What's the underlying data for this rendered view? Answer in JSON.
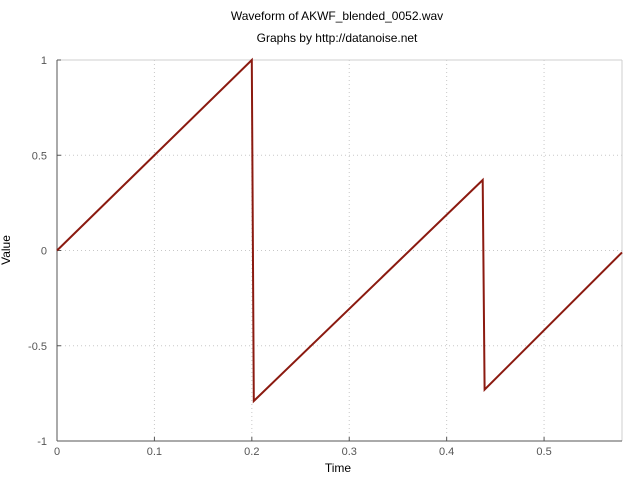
{
  "chart_data": {
    "type": "line",
    "title": "Waveform of AKWF_blended_0052.wav",
    "subtitle": "Graphs by http://datanoise.net",
    "xlabel": "Time",
    "ylabel": "Value",
    "xlim": [
      0,
      0.58
    ],
    "ylim": [
      -1,
      1
    ],
    "x_ticks": [
      0,
      0.1,
      0.2,
      0.3,
      0.4,
      0.5
    ],
    "x_tick_labels": [
      "0",
      "0.1",
      "0.2",
      "0.3",
      "0.4",
      "0.5"
    ],
    "y_ticks": [
      -1,
      -0.5,
      0,
      0.5,
      1
    ],
    "y_tick_labels": [
      "-1",
      "-0.5",
      "0",
      "0.5",
      "1"
    ],
    "grid": true,
    "series": [
      {
        "color": "#8b1a10",
        "x": [
          0,
          0.2,
          0.202,
          0.437,
          0.439,
          0.58
        ],
        "y": [
          0,
          1,
          -0.79,
          0.37,
          -0.73,
          -0.01
        ]
      }
    ]
  }
}
